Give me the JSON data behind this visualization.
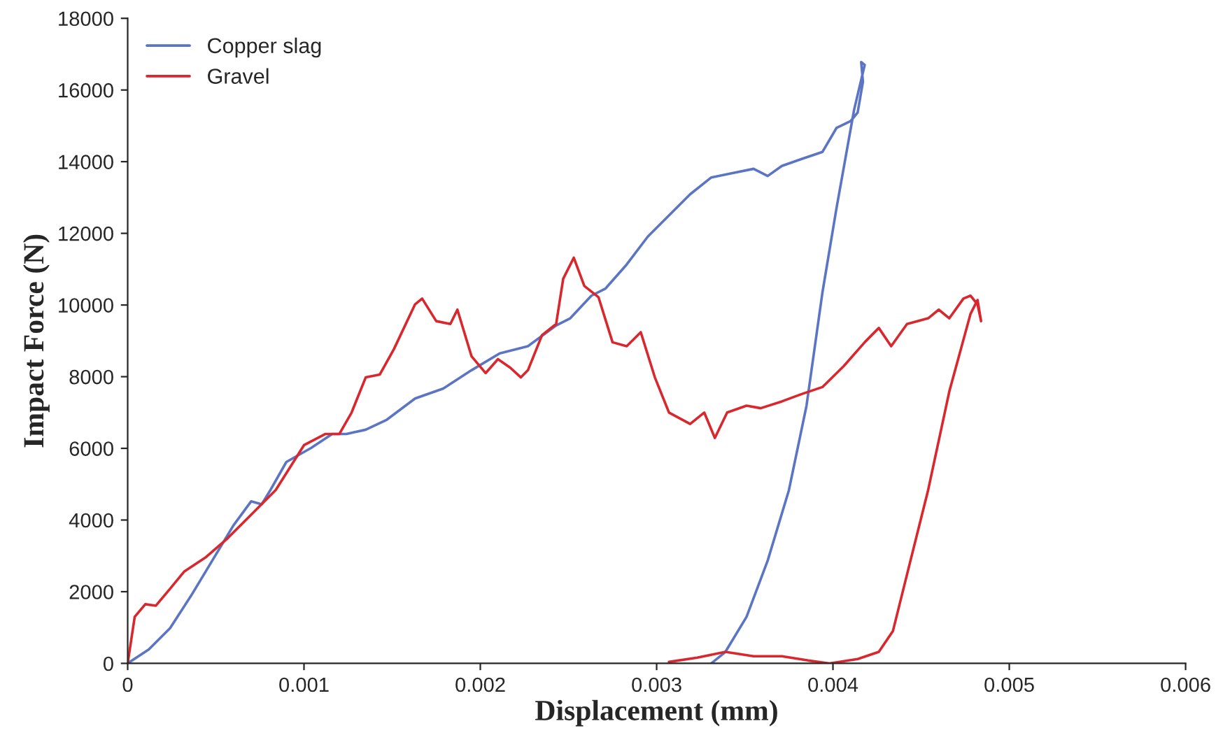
{
  "chart_data": {
    "type": "line",
    "xlabel": "Displacement (mm)",
    "ylabel": "Impact Force (N)",
    "xlim": [
      0,
      0.006
    ],
    "xticks": [
      0,
      0.001,
      0.002,
      0.003,
      0.004,
      0.005,
      0.006
    ],
    "ylim": [
      0,
      18000
    ],
    "yticks": [
      0,
      2000,
      4000,
      6000,
      8000,
      10000,
      12000,
      14000,
      16000,
      18000
    ],
    "grid": false,
    "legend": "top left",
    "marker": "none",
    "line_style": "solid",
    "series": [
      {
        "name": "Copper slag",
        "color": "#5b74c4",
        "x": [
          0,
          0.00012,
          0.00024,
          0.00036,
          0.00048,
          0.0006,
          0.0007,
          0.00076,
          0.00081,
          0.0009,
          0.00104,
          0.00116,
          0.00124,
          0.00135,
          0.00147,
          0.00163,
          0.00179,
          0.00195,
          0.00211,
          0.00227,
          0.00243,
          0.00251,
          0.00263,
          0.00271,
          0.00283,
          0.00295,
          0.00307,
          0.00319,
          0.00331,
          0.00343,
          0.00355,
          0.00363,
          0.00371,
          0.00382,
          0.00394,
          0.00402,
          0.0041,
          0.00414,
          0.00417,
          0.00416,
          0.00418,
          0.00412,
          0.00402,
          0.00394,
          0.00385,
          0.00375,
          0.00363,
          0.00351,
          0.00339,
          0.00331
        ],
        "values": [
          0,
          390,
          980,
          1890,
          2870,
          3850,
          4520,
          4440,
          4840,
          5620,
          6010,
          6400,
          6400,
          6520,
          6800,
          7390,
          7670,
          8180,
          8650,
          8850,
          9430,
          9630,
          10260,
          10460,
          11130,
          11910,
          12500,
          13090,
          13560,
          13680,
          13800,
          13600,
          13880,
          14070,
          14270,
          14940,
          15130,
          15370,
          16230,
          16780,
          16700,
          15450,
          12700,
          10340,
          7190,
          4830,
          2870,
          1300,
          320,
          0
        ]
      },
      {
        "name": "Gravel",
        "color": "#d9272e",
        "x": [
          0,
          4e-05,
          0.0001,
          0.00016,
          0.00024,
          0.00032,
          0.00044,
          0.00056,
          0.00068,
          0.00084,
          0.001,
          0.00112,
          0.0012,
          0.00127,
          0.00135,
          0.00143,
          0.00151,
          0.00163,
          0.00167,
          0.00175,
          0.00183,
          0.00187,
          0.00195,
          0.00203,
          0.0021,
          0.00217,
          0.00223,
          0.00227,
          0.00235,
          0.00243,
          0.00247,
          0.00253,
          0.00259,
          0.00267,
          0.00275,
          0.00283,
          0.00291,
          0.00299,
          0.00307,
          0.00319,
          0.00327,
          0.00333,
          0.0034,
          0.00351,
          0.00359,
          0.00371,
          0.00382,
          0.00394,
          0.00406,
          0.00418,
          0.00426,
          0.00433,
          0.00442,
          0.00454,
          0.0046,
          0.00466,
          0.00474,
          0.00478,
          0.00482,
          0.00484,
          0.00482,
          0.00478,
          0.00466,
          0.00454,
          0.00442,
          0.00434,
          0.00426,
          0.00414,
          0.00398,
          0.00386,
          0.00371,
          0.00355,
          0.00339,
          0.00323,
          0.00307
        ],
        "values": [
          0,
          1300,
          1650,
          1610,
          2080,
          2560,
          2950,
          3460,
          4050,
          4840,
          6090,
          6400,
          6400,
          7000,
          7980,
          8060,
          8770,
          10020,
          10180,
          9550,
          9470,
          9870,
          8570,
          8100,
          8490,
          8250,
          7980,
          8180,
          9160,
          9470,
          10730,
          11320,
          10530,
          10220,
          8960,
          8850,
          9240,
          7980,
          7000,
          6680,
          7000,
          6290,
          7000,
          7190,
          7120,
          7310,
          7510,
          7710,
          8290,
          8960,
          9360,
          8850,
          9470,
          9630,
          9870,
          9630,
          10180,
          10260,
          10020,
          9550,
          10140,
          9750,
          7590,
          4840,
          2480,
          900,
          320,
          120,
          0,
          80,
          200,
          200,
          320,
          160,
          40
        ]
      }
    ]
  }
}
